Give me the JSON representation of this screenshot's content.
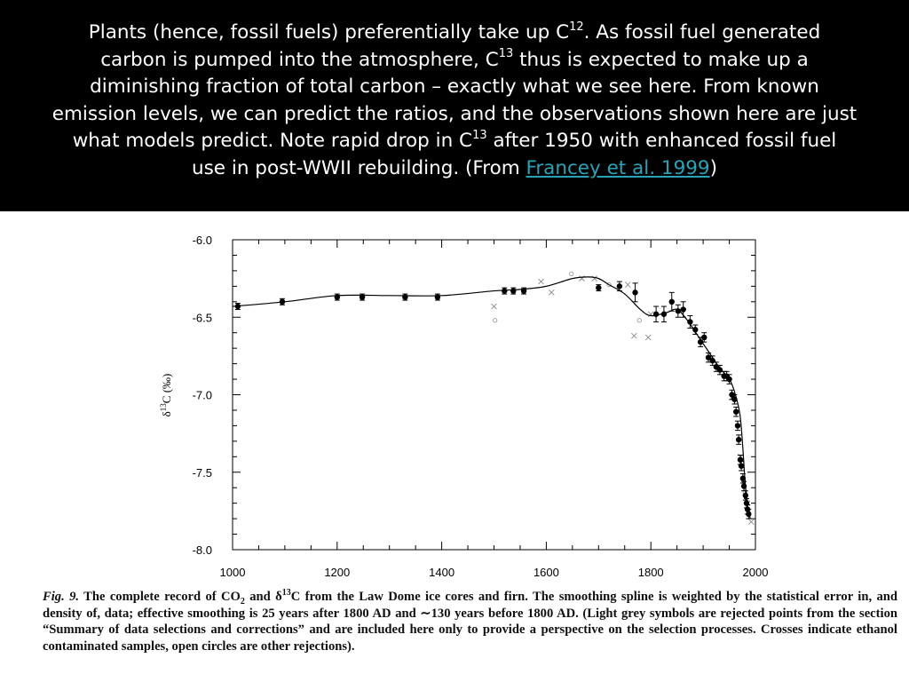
{
  "header": {
    "lines": [
      {
        "a": "Plants (hence, fossil fuels) preferentially take up C",
        "sup": "12",
        "b": ". As fossil fuel generated"
      },
      {
        "a": "carbon is pumped into the atmosphere, C",
        "sup": "13",
        "b": " thus is expected to make up a"
      },
      {
        "a": "diminishing fraction of total carbon – exactly what we see here. From known"
      },
      {
        "a": "emission levels, we can predict the ratios, and the observations shown here are just"
      },
      {
        "a": "what models predict. Note rapid drop in C",
        "sup": "13",
        "b": " after 1950 with enhanced fossil fuel"
      },
      {
        "a": "use in post-WWII rebuilding. (From ",
        "link": "Francey et al. 1999",
        "b": ")"
      }
    ]
  },
  "chart_data": {
    "type": "scatter",
    "ylabel": "δ13C (‰)",
    "xlim": [
      1000,
      2000
    ],
    "ylim": [
      -8.0,
      -6.0
    ],
    "x_ticks": [
      1000,
      1200,
      1400,
      1600,
      1800,
      2000
    ],
    "y_ticks": [
      -6.0,
      -6.5,
      -7.0,
      -7.5,
      -8.0
    ],
    "x_tick_labels": [
      "1000",
      "1200",
      "1400",
      "1600",
      "1800",
      "2000"
    ],
    "y_tick_labels": [
      "-6.0",
      "-6.5",
      "-7.0",
      "-7.5",
      "-8.0"
    ],
    "grid": false,
    "series": [
      {
        "kind": "points",
        "x": [
          1010,
          1095,
          1200,
          1248,
          1330,
          1392,
          1520,
          1537,
          1557,
          1700,
          1740,
          1770,
          1810,
          1825,
          1840,
          1852,
          1862,
          1875,
          1885,
          1895,
          1902,
          1910,
          1918,
          1925,
          1932,
          1940,
          1945,
          1950,
          1955,
          1960,
          1963,
          1966,
          1968,
          1971,
          1973,
          1976,
          1978,
          1981,
          1983,
          1985,
          1987
        ],
        "y": [
          -6.43,
          -6.4,
          -6.37,
          -6.37,
          -6.37,
          -6.37,
          -6.33,
          -6.33,
          -6.33,
          -6.31,
          -6.3,
          -6.34,
          -6.48,
          -6.48,
          -6.4,
          -6.46,
          -6.45,
          -6.53,
          -6.58,
          -6.66,
          -6.63,
          -6.76,
          -6.78,
          -6.82,
          -6.84,
          -6.88,
          -6.88,
          -6.9,
          -7.0,
          -7.03,
          -7.11,
          -7.2,
          -7.29,
          -7.42,
          -7.46,
          -7.54,
          -7.59,
          -7.65,
          -7.7,
          -7.74,
          -7.77
        ],
        "err": [
          0.02,
          0.02,
          0.02,
          0.02,
          0.02,
          0.02,
          0.02,
          0.02,
          0.02,
          0.02,
          0.03,
          0.06,
          0.05,
          0.05,
          0.06,
          0.04,
          0.05,
          0.04,
          0.03,
          0.03,
          0.03,
          0.03,
          0.03,
          0.03,
          0.03,
          0.03,
          0.03,
          0.03,
          0.03,
          0.03,
          0.03,
          0.03,
          0.03,
          0.03,
          0.03,
          0.03,
          0.03,
          0.03,
          0.03,
          0.03,
          0.03
        ]
      },
      {
        "kind": "rejected",
        "x": [
          1500,
          1502,
          1590,
          1610,
          1648,
          1668,
          1692,
          1720,
          1756,
          1768,
          1778,
          1795,
          1800,
          1940,
          1955,
          1972,
          1980,
          1985,
          1992
        ],
        "y": [
          -6.43,
          -6.52,
          -6.27,
          -6.34,
          -6.22,
          -6.25,
          -6.25,
          -6.29,
          -6.29,
          -6.62,
          -6.52,
          -6.63,
          -6.48,
          -6.88,
          -7.02,
          -7.4,
          -7.63,
          -7.7,
          -7.82
        ]
      },
      {
        "kind": "spline",
        "x": [
          1000,
          1100,
          1200,
          1300,
          1400,
          1500,
          1550,
          1600,
          1650,
          1680,
          1700,
          1720,
          1750,
          1780,
          1800,
          1830,
          1850,
          1870,
          1890,
          1910,
          1930,
          1950,
          1960,
          1970,
          1975,
          1980,
          1985,
          1990
        ],
        "y": [
          -6.43,
          -6.4,
          -6.36,
          -6.36,
          -6.36,
          -6.33,
          -6.32,
          -6.3,
          -6.25,
          -6.24,
          -6.25,
          -6.29,
          -6.35,
          -6.45,
          -6.49,
          -6.47,
          -6.45,
          -6.52,
          -6.62,
          -6.72,
          -6.82,
          -6.9,
          -6.98,
          -7.12,
          -7.3,
          -7.55,
          -7.72,
          -7.8
        ]
      }
    ]
  },
  "caption": {
    "fig_label": "Fig. 9.",
    "text1": " The complete record of CO",
    "sub": "2",
    "text2": " and δ",
    "sup": "13",
    "text3": "C from the Law Dome ice cores and firn. The smoothing spline is weighted by the statistical error in, and density of, data; effective smoothing is 25 years after 1800 AD and ∼130 years before 1800 AD. (Light grey symbols are rejected points from the section “Summary of data selections and corrections” and are included here only to provide a perspective on the selection processes. Crosses indicate ethanol contaminated samples, open circles are other rejections)."
  }
}
